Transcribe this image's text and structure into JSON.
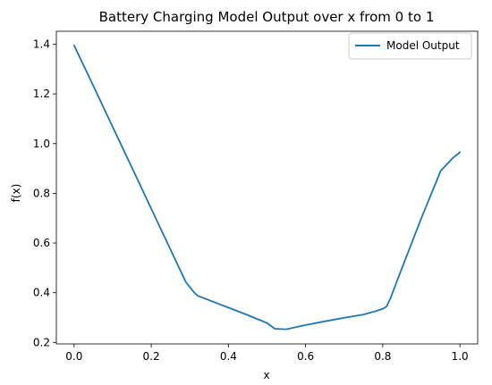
{
  "chart_data": {
    "type": "line",
    "title": "Battery Charging Model Output over x from 0 to 1",
    "xlabel": "x",
    "ylabel": "f(x)",
    "xlim": [
      -0.046,
      1.046
    ],
    "ylim": [
      0.194,
      1.452
    ],
    "xticks": [
      0.0,
      0.2,
      0.4,
      0.6,
      0.8,
      1.0
    ],
    "xtick_labels": [
      "0.0",
      "0.2",
      "0.4",
      "0.6",
      "0.8",
      "1.0"
    ],
    "yticks": [
      0.2,
      0.4,
      0.6,
      0.8,
      1.0,
      1.2,
      1.4
    ],
    "ytick_labels": [
      "0.2",
      "0.4",
      "0.6",
      "0.8",
      "1.0",
      "1.2",
      "1.4"
    ],
    "grid": false,
    "legend": "top-right",
    "series": [
      {
        "name": "Model Output",
        "color": "#1f77b4",
        "x": [
          0.0,
          0.05,
          0.1,
          0.15,
          0.2,
          0.25,
          0.27,
          0.29,
          0.31,
          0.32,
          0.33,
          0.35,
          0.4,
          0.45,
          0.5,
          0.52,
          0.55,
          0.6,
          0.65,
          0.7,
          0.75,
          0.78,
          0.8,
          0.81,
          0.82,
          0.85,
          0.9,
          0.95,
          0.98,
          1.0
        ],
        "y": [
          1.395,
          1.232,
          1.067,
          0.903,
          0.738,
          0.573,
          0.507,
          0.442,
          0.403,
          0.388,
          0.382,
          0.37,
          0.34,
          0.31,
          0.278,
          0.255,
          0.253,
          0.27,
          0.285,
          0.299,
          0.312,
          0.325,
          0.335,
          0.345,
          0.378,
          0.5,
          0.7,
          0.89,
          0.94,
          0.965
        ]
      }
    ]
  }
}
